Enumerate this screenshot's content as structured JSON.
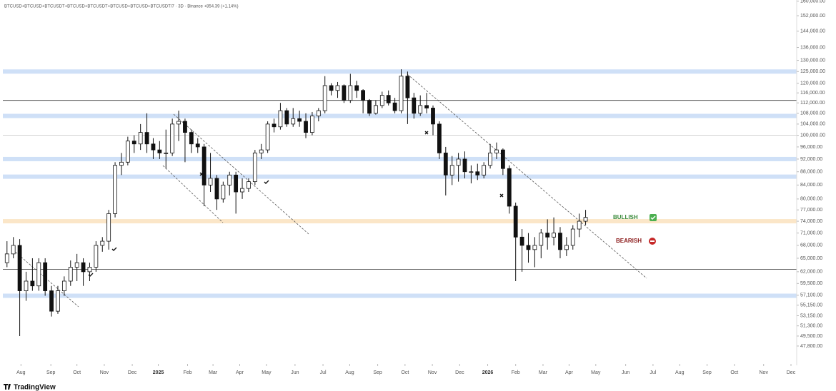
{
  "chart_data": {
    "type": "candlestick",
    "title": "BTCUSD+BTCUSD+BTCUSDT+BTCUSD+BTCUSDT+BTCUSD+BTCUSD+BTCUSDT/7 · 3D · Binance +854.39 (+1.14%)",
    "brand": "TradingView",
    "log_scale": true,
    "up_color": "#ffffff",
    "down_color": "#111111",
    "xlim": [
      -1.1,
      124.2
    ],
    "xticks": [
      {
        "value": 2.2,
        "label": "Aug"
      },
      {
        "value": 6.9,
        "label": "Sep"
      },
      {
        "value": 11,
        "label": "Oct"
      },
      {
        "value": 15.3,
        "label": "Nov"
      },
      {
        "value": 19.7,
        "label": "Dec"
      },
      {
        "value": 23.8,
        "label": "2025"
      },
      {
        "value": 28.4,
        "label": "Feb"
      },
      {
        "value": 32.4,
        "label": "Mar"
      },
      {
        "value": 36.6,
        "label": "Apr"
      },
      {
        "value": 40.8,
        "label": "May"
      },
      {
        "value": 45.3,
        "label": "Jun"
      },
      {
        "value": 49.7,
        "label": "Jul"
      },
      {
        "value": 53.9,
        "label": "Aug"
      },
      {
        "value": 58.3,
        "label": "Sep"
      },
      {
        "value": 62.6,
        "label": "Oct"
      },
      {
        "value": 66.9,
        "label": "Nov"
      },
      {
        "value": 71.2,
        "label": "Dec"
      },
      {
        "value": 75.6,
        "label": "2026"
      },
      {
        "value": 80,
        "label": "Feb"
      },
      {
        "value": 84.3,
        "label": "Mar"
      },
      {
        "value": 88.4,
        "label": "Apr"
      },
      {
        "value": 92.6,
        "label": "May"
      },
      {
        "value": 97.3,
        "label": "Jun"
      },
      {
        "value": 101.6,
        "label": "Jul"
      },
      {
        "value": 105.8,
        "label": "Aug"
      },
      {
        "value": 110.1,
        "label": "Sep"
      },
      {
        "value": 114.4,
        "label": "Oct"
      },
      {
        "value": 119,
        "label": "Nov"
      },
      {
        "value": 123.3,
        "label": "Dec"
      }
    ],
    "ylim": [
      44900,
      160600
    ],
    "yticks": [
      {
        "value": 160000,
        "label": "160,000.00"
      },
      {
        "value": 152000,
        "label": "152,000.00"
      },
      {
        "value": 144000,
        "label": "144,000.00"
      },
      {
        "value": 136000,
        "label": "136,000.00"
      },
      {
        "value": 130000,
        "label": "130,000.00"
      },
      {
        "value": 125000,
        "label": "125,000.00"
      },
      {
        "value": 120000,
        "label": "120,000.00"
      },
      {
        "value": 116000,
        "label": "116,000.00"
      },
      {
        "value": 112000,
        "label": "112,000.00"
      },
      {
        "value": 108000,
        "label": "108,000.00"
      },
      {
        "value": 104000,
        "label": "104,000.00"
      },
      {
        "value": 100000,
        "label": "100,000.00"
      },
      {
        "value": 96000,
        "label": "96,000.00"
      },
      {
        "value": 92000,
        "label": "92,000.00"
      },
      {
        "value": 88000,
        "label": "88,000.00"
      },
      {
        "value": 84000,
        "label": "84,000.00"
      },
      {
        "value": 80000,
        "label": "80,000.00"
      },
      {
        "value": 77000,
        "label": "77,000.00"
      },
      {
        "value": 74000,
        "label": "74,000.00"
      },
      {
        "value": 71000,
        "label": "71,000.00"
      },
      {
        "value": 68000,
        "label": "68,000.00"
      },
      {
        "value": 65000,
        "label": "65,000.00"
      },
      {
        "value": 62000,
        "label": "62,000.00"
      },
      {
        "value": 59500,
        "label": "59,500.00"
      },
      {
        "value": 57100,
        "label": "57,100.00"
      },
      {
        "value": 55150,
        "label": "55,150.00"
      },
      {
        "value": 53150,
        "label": "53,150.00"
      },
      {
        "value": 51300,
        "label": "51,300.00"
      },
      {
        "value": 49500,
        "label": "49,500.00"
      },
      {
        "value": 47800,
        "label": "47,800.00"
      }
    ],
    "levels": [
      {
        "value": 125000,
        "style": "zone",
        "color": "#cfe0f7"
      },
      {
        "value": 107000,
        "style": "zone",
        "color": "#cfe0f7"
      },
      {
        "value": 92000,
        "style": "zone",
        "color": "#cfe0f7"
      },
      {
        "value": 86500,
        "style": "zone",
        "color": "#cfe0f7"
      },
      {
        "value": 57000,
        "style": "zone",
        "color": "#cfe0f7"
      },
      {
        "value": 74000,
        "style": "zone",
        "color": "#fbe6c8"
      },
      {
        "value": 113000,
        "style": "line",
        "color": "#333333"
      },
      {
        "value": 62500,
        "style": "line",
        "color": "#333333"
      },
      {
        "value": 100000,
        "style": "line",
        "color": "#cccccc"
      }
    ],
    "annotations": [
      {
        "text": "BULLISH",
        "color": "#3a8a3a"
      },
      {
        "text": "BEARISH",
        "color": "#8b1a1a"
      }
    ],
    "x": [
      0,
      1,
      2,
      3,
      4,
      5,
      6,
      7,
      8,
      9,
      10,
      11,
      12,
      13,
      14,
      15,
      16,
      17,
      18,
      19,
      20,
      21,
      22,
      23,
      24,
      25,
      26,
      27,
      28,
      29,
      30,
      31,
      32,
      33,
      34,
      35,
      36,
      37,
      38,
      39,
      40,
      41,
      42,
      43,
      44,
      45,
      46,
      47,
      48,
      49,
      50,
      51,
      52,
      53,
      54,
      55,
      56,
      57,
      58,
      59,
      60,
      61,
      62,
      63,
      64,
      65,
      66,
      67,
      68,
      69,
      70,
      71,
      72,
      73,
      74,
      75,
      76,
      77,
      78,
      79,
      80,
      81,
      82,
      83,
      84,
      85,
      86,
      87,
      88,
      89,
      90,
      91
    ],
    "ohlc": [
      [
        64000,
        69000,
        63000,
        66000
      ],
      [
        66000,
        70000,
        65000,
        68000
      ],
      [
        68000,
        69500,
        49500,
        58000
      ],
      [
        58000,
        62000,
        56000,
        60000
      ],
      [
        60000,
        65000,
        58000,
        59000
      ],
      [
        59000,
        65000,
        58000,
        64000
      ],
      [
        64000,
        65000,
        57000,
        58000
      ],
      [
        58000,
        59000,
        53000,
        54000
      ],
      [
        54000,
        59000,
        53500,
        58000
      ],
      [
        58000,
        61000,
        57000,
        60000
      ],
      [
        60000,
        64500,
        59000,
        63000
      ],
      [
        63000,
        66000,
        60000,
        64000
      ],
      [
        64000,
        65000,
        59000,
        62000
      ],
      [
        62000,
        64000,
        60000,
        63000
      ],
      [
        63000,
        69000,
        62000,
        68000
      ],
      [
        68000,
        70000,
        66500,
        69000
      ],
      [
        69000,
        77000,
        67000,
        76000
      ],
      [
        76000,
        91000,
        75000,
        90000
      ],
      [
        90000,
        94000,
        87000,
        91000
      ],
      [
        91000,
        99500,
        90000,
        98000
      ],
      [
        98000,
        100000,
        94000,
        97000
      ],
      [
        97000,
        104000,
        95000,
        101000
      ],
      [
        101000,
        108000,
        94000,
        97000
      ],
      [
        97000,
        99000,
        92000,
        95000
      ],
      [
        95000,
        98000,
        92000,
        94000
      ],
      [
        94000,
        102000,
        89000,
        94000
      ],
      [
        94000,
        106000,
        93000,
        104000
      ],
      [
        104000,
        109000,
        98000,
        105000
      ],
      [
        105000,
        106000,
        91000,
        101000
      ],
      [
        101000,
        102000,
        94000,
        97000
      ],
      [
        97000,
        99000,
        94000,
        96000
      ],
      [
        96000,
        97000,
        78000,
        84000
      ],
      [
        84000,
        94000,
        82000,
        86000
      ],
      [
        86000,
        87000,
        77000,
        80000
      ],
      [
        80000,
        85000,
        79000,
        84000
      ],
      [
        84000,
        88000,
        81000,
        87000
      ],
      [
        87000,
        88000,
        76000,
        82000
      ],
      [
        82000,
        86000,
        80000,
        83000
      ],
      [
        83000,
        86000,
        82000,
        85000
      ],
      [
        85000,
        95000,
        84000,
        94000
      ],
      [
        94000,
        97000,
        92000,
        95000
      ],
      [
        95000,
        105000,
        94000,
        104000
      ],
      [
        104000,
        106000,
        101000,
        103000
      ],
      [
        103000,
        112000,
        102000,
        109000
      ],
      [
        109000,
        110000,
        103000,
        104000
      ],
      [
        104000,
        110000,
        103000,
        106000
      ],
      [
        106000,
        109000,
        103000,
        105000
      ],
      [
        105000,
        108000,
        99000,
        101000
      ],
      [
        101000,
        108500,
        100000,
        107000
      ],
      [
        107000,
        110000,
        105000,
        109000
      ],
      [
        109000,
        123000,
        108000,
        119000
      ],
      [
        119000,
        120000,
        115000,
        117000
      ],
      [
        117000,
        120500,
        114000,
        119000
      ],
      [
        119000,
        119500,
        112000,
        113000
      ],
      [
        113000,
        124000,
        112000,
        119000
      ],
      [
        119000,
        121000,
        114000,
        117000
      ],
      [
        117000,
        117500,
        108000,
        113000
      ],
      [
        113000,
        113500,
        107000,
        108000
      ],
      [
        108000,
        113000,
        107500,
        111000
      ],
      [
        111000,
        116500,
        110000,
        115000
      ],
      [
        115000,
        117000,
        111000,
        112000
      ],
      [
        112000,
        114000,
        108000,
        109000
      ],
      [
        109000,
        126000,
        108000,
        123000
      ],
      [
        123000,
        125000,
        104000,
        114000
      ],
      [
        114000,
        116000,
        106000,
        108000
      ],
      [
        108000,
        115000,
        107000,
        111000
      ],
      [
        111000,
        116000,
        108000,
        110000
      ],
      [
        110000,
        111000,
        100000,
        104000
      ],
      [
        104000,
        105000,
        92000,
        94000
      ],
      [
        94000,
        96000,
        81000,
        87000
      ],
      [
        87000,
        93000,
        84000,
        90000
      ],
      [
        90000,
        94000,
        85000,
        92000
      ],
      [
        92000,
        94500,
        86000,
        88000
      ],
      [
        88000,
        90000,
        84500,
        88000
      ],
      [
        88000,
        90500,
        85500,
        87000
      ],
      [
        87000,
        91000,
        86000,
        90000
      ],
      [
        90000,
        97000,
        89000,
        94000
      ],
      [
        94000,
        97500,
        92000,
        95000
      ],
      [
        95000,
        95500,
        87000,
        89000
      ],
      [
        89000,
        90000,
        76000,
        78000
      ],
      [
        78000,
        79000,
        60000,
        70000
      ],
      [
        70000,
        72000,
        62000,
        68000
      ],
      [
        68000,
        71000,
        64000,
        67000
      ],
      [
        67000,
        70000,
        63000,
        68000
      ],
      [
        68000,
        72000,
        65000,
        71000
      ],
      [
        71000,
        74500,
        67000,
        70000
      ],
      [
        70000,
        75000,
        68000,
        71000
      ],
      [
        71000,
        72500,
        65000,
        67000
      ],
      [
        67000,
        70000,
        65500,
        68000
      ],
      [
        68000,
        73000,
        67000,
        72000
      ],
      [
        72000,
        76000,
        70000,
        74000
      ],
      [
        74000,
        77000,
        73000,
        75000
      ]
    ]
  }
}
